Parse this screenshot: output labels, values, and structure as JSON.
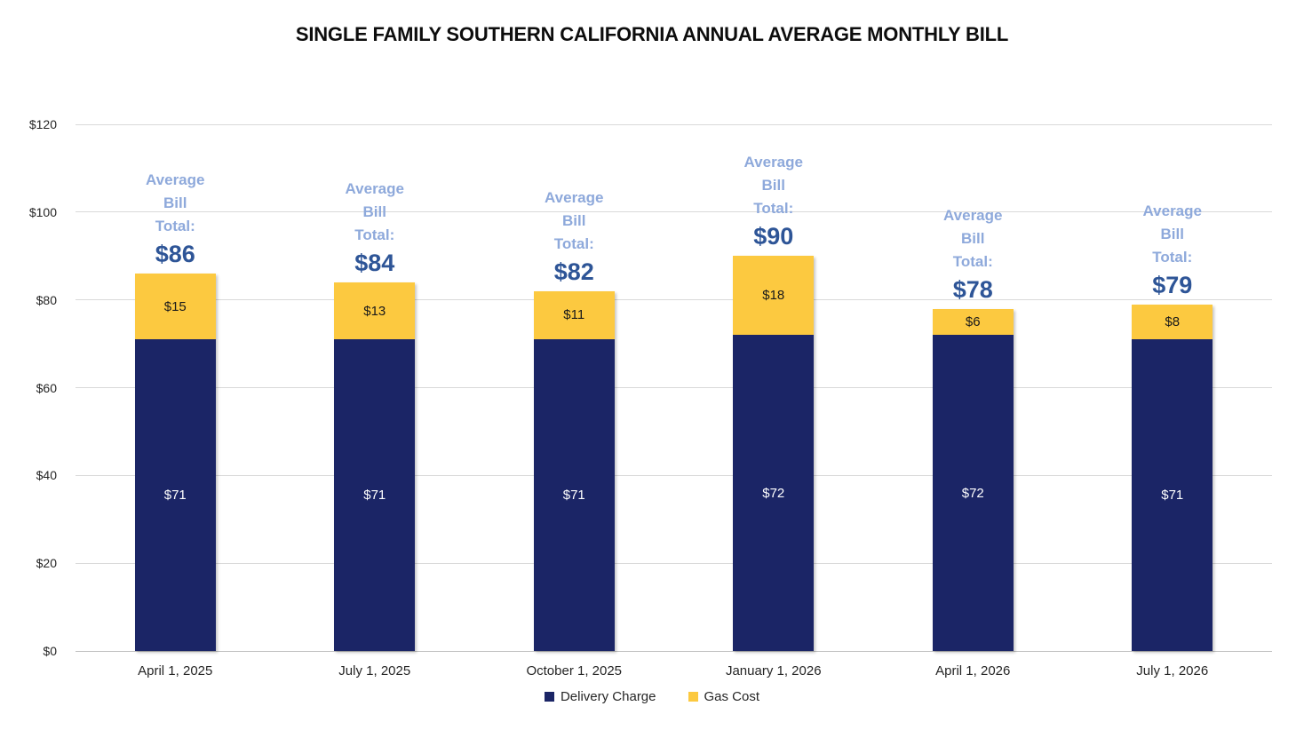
{
  "title": "SINGLE FAMILY SOUTHERN CALIFORNIA ANNUAL AVERAGE MONTHLY BILL",
  "chart_data": {
    "type": "bar",
    "stacked": true,
    "title": "SINGLE FAMILY SOUTHERN CALIFORNIA ANNUAL AVERAGE MONTHLY BILL",
    "categories": [
      "April 1, 2025",
      "July 1, 2025",
      "October 1, 2025",
      "January 1, 2026",
      "April 1, 2026",
      "July 1, 2026"
    ],
    "series": [
      {
        "name": "Delivery Charge",
        "color": "#1B2566",
        "label_color": "#FFFFFF",
        "values": [
          71,
          71,
          71,
          72,
          72,
          71
        ],
        "labels": [
          "$71",
          "$71",
          "$71",
          "$72",
          "$72",
          "$71"
        ]
      },
      {
        "name": "Gas Cost",
        "color": "#FCC940",
        "label_color": "#1A1A1A",
        "values": [
          15,
          13,
          11,
          18,
          6,
          8
        ],
        "labels": [
          "$15",
          "$13",
          "$11",
          "$18",
          "$6",
          "$8"
        ]
      }
    ],
    "totals": [
      86,
      84,
      82,
      90,
      78,
      79
    ],
    "totals_display": [
      "$86",
      "$84",
      "$82",
      "$90",
      "$78",
      "$79"
    ],
    "annotation_lines": [
      "Average",
      "Bill",
      "Total:"
    ],
    "annotation_line_color": "#8EA9DB",
    "annotation_total_color": "#2E5597",
    "ylim": [
      0,
      120
    ],
    "yticks": [
      {
        "value": 0,
        "label": "$0"
      },
      {
        "value": 20,
        "label": "$20"
      },
      {
        "value": 40,
        "label": "$40"
      },
      {
        "value": 60,
        "label": "$60"
      },
      {
        "value": 80,
        "label": "$80"
      },
      {
        "value": 100,
        "label": "$100"
      },
      {
        "value": 120,
        "label": "$120"
      }
    ],
    "grid": true,
    "legend_position": "bottom"
  }
}
